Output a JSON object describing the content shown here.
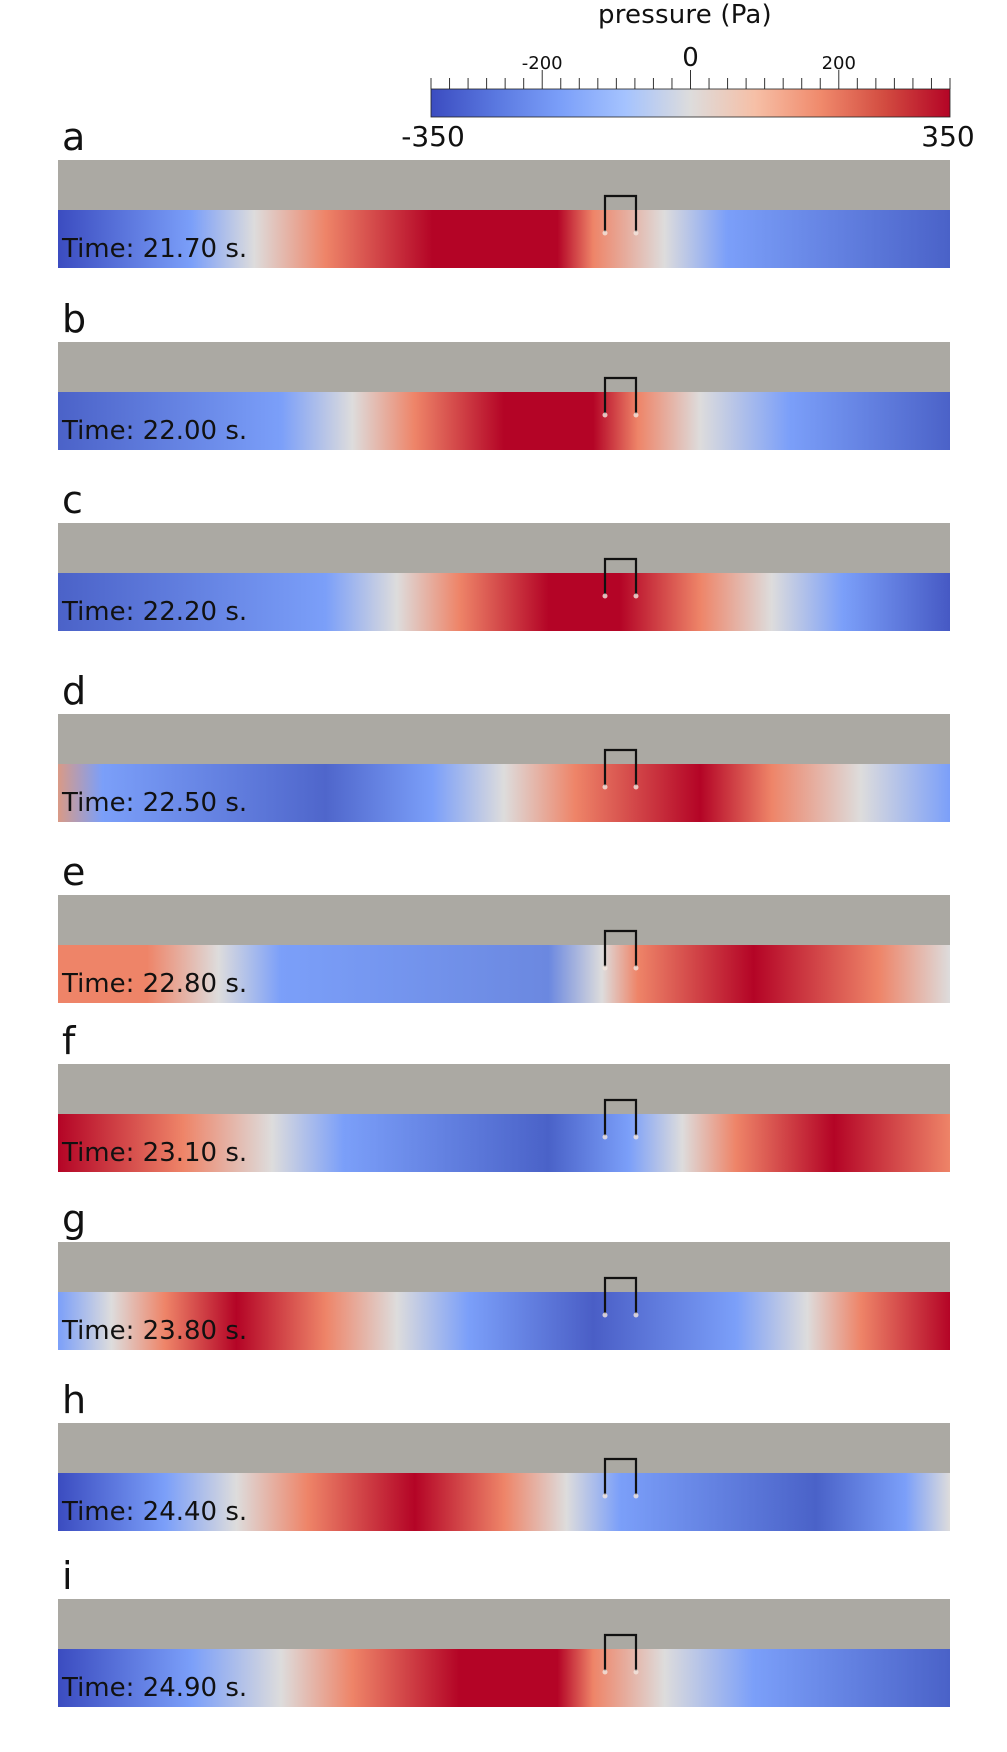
{
  "colorbar": {
    "title": "pressure (Pa)",
    "min": -350,
    "max": 350,
    "min_label": "-350",
    "max_label": "350",
    "tick_labels": [
      "-200",
      "0",
      "200"
    ],
    "tick_values": [
      -200,
      0,
      200
    ],
    "colors": {
      "low": "#3b4cc0",
      "mid": "#dddddd",
      "high": "#b40426"
    }
  },
  "panels": [
    {
      "letter": "a",
      "time": "Time: 21.70 s."
    },
    {
      "letter": "b",
      "time": "Time: 22.00 s."
    },
    {
      "letter": "c",
      "time": "Time: 22.20 s."
    },
    {
      "letter": "d",
      "time": "Time: 22.50 s."
    },
    {
      "letter": "e",
      "time": "Time: 22.80 s."
    },
    {
      "letter": "f",
      "time": "Time: 23.10 s."
    },
    {
      "letter": "g",
      "time": "Time: 23.80 s."
    },
    {
      "letter": "h",
      "time": "Time: 24.40 s."
    },
    {
      "letter": "i",
      "time": "Time: 24.90 s."
    }
  ],
  "colors": {
    "air": "#aba9a3",
    "structure": "#111111"
  }
}
